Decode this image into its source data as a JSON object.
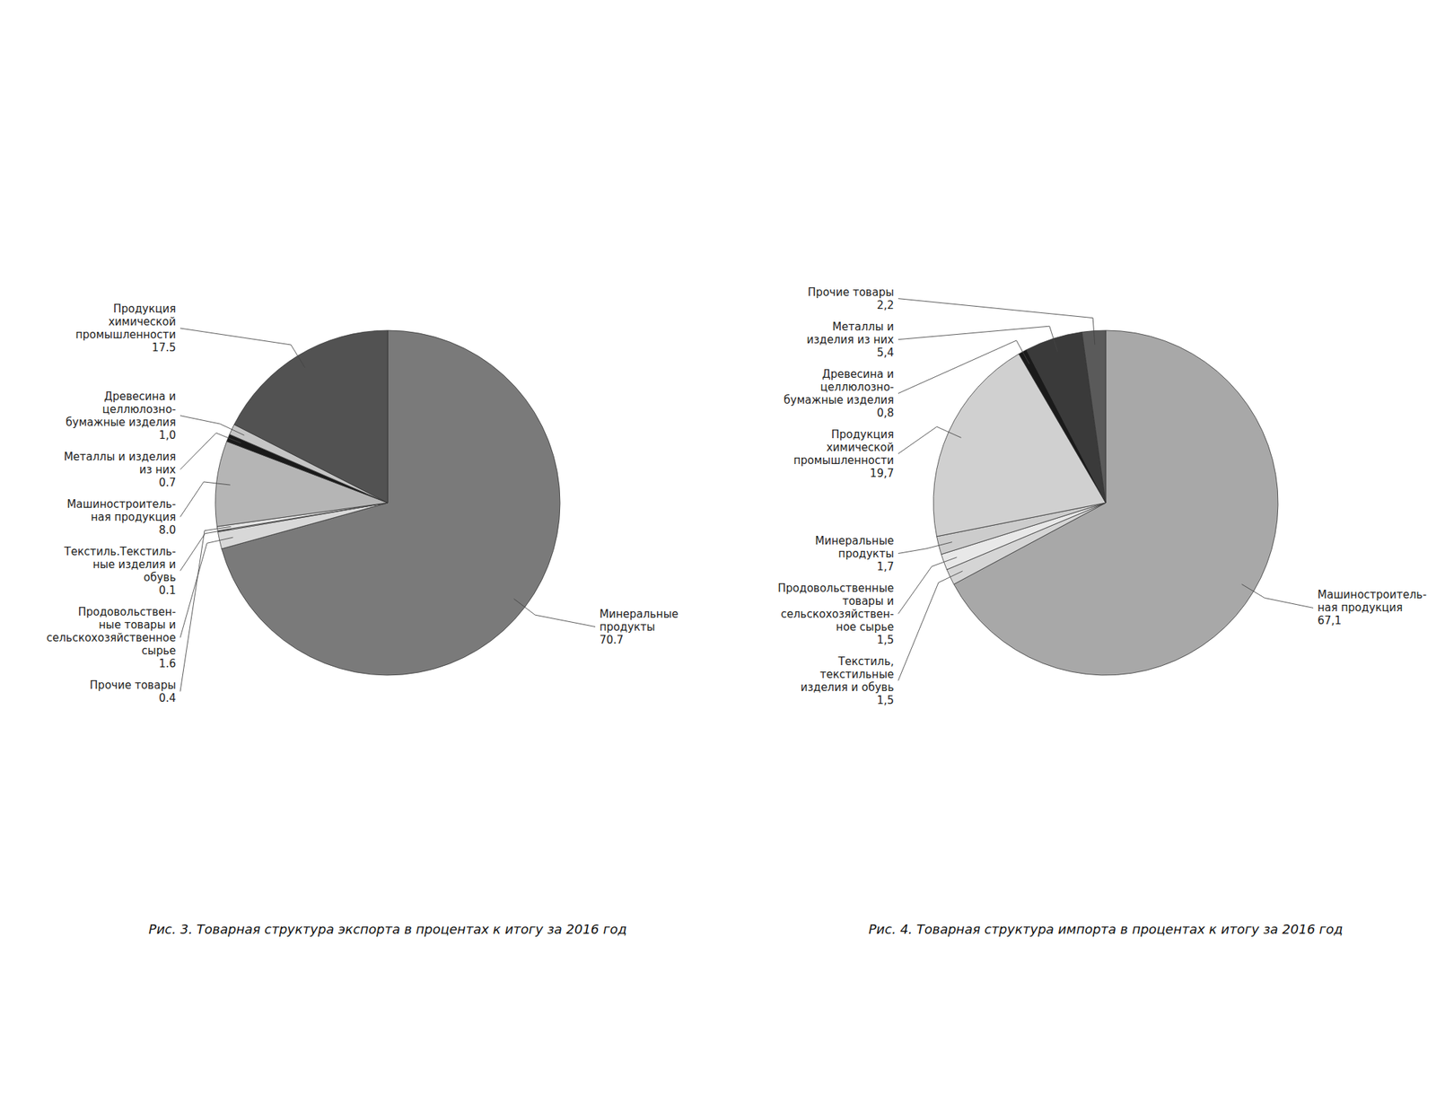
{
  "chart_data": [
    {
      "type": "pie",
      "title": "Рис. 3. Товарная структура экспорта в процентах к итогу за 2016 год",
      "categories": [
        "Минеральные\nпродукты\n70.7",
        "Продовольствен-\nные товары и\nсельскохозяйственное\nсырье\n1.6",
        "Текстиль.Текстиль-\nные изделия и\nобувь\n0.1",
        "Прочие товары\n0.4",
        "Машиностроитель-\nная продукция\n8.0",
        "Металлы и изделия\nиз них\n0.7",
        "Древесина и\nцеллюлозно-\nбумажные изделия\n1,0",
        "Продукция\nхимической\nпромышленности\n17.5"
      ],
      "values": [
        70.7,
        1.6,
        0.1,
        0.4,
        8.0,
        0.7,
        1.0,
        17.5
      ],
      "colors": [
        "#7a7a7a",
        "#d8d8d8",
        "#efefef",
        "#e5e5e5",
        "#b5b5b5",
        "#1a1a1a",
        "#c5c5c5",
        "#525252"
      ]
    },
    {
      "type": "pie",
      "title": "Рис. 4. Товарная структура импорта в процентах к итогу за 2016 год",
      "categories": [
        "Машиностроитель-\nная продукция\n67,1",
        "Текстиль,\nтекстильные\nизделия и обувь\n1,5",
        "Продовольственные\nтовары и\nсельскохозяйствен-\nное сырье\n1,5",
        "Минеральные\nпродукты\n1,7",
        "Продукция\nхимической\nпромышленности\n19,7",
        "Древесина и\nцеллюлозно-\nбумажные изделия\n0,8",
        "Металлы и\nизделия из них\n5,4",
        "Прочие товары\n2,2"
      ],
      "values": [
        67.1,
        1.5,
        1.5,
        1.7,
        19.7,
        0.8,
        5.4,
        2.2
      ],
      "colors": [
        "#a8a8a8",
        "#d5d5d5",
        "#e8e8e8",
        "#cccccc",
        "#d0d0d0",
        "#1a1a1a",
        "#3a3a3a",
        "#5a5a5a"
      ]
    }
  ]
}
